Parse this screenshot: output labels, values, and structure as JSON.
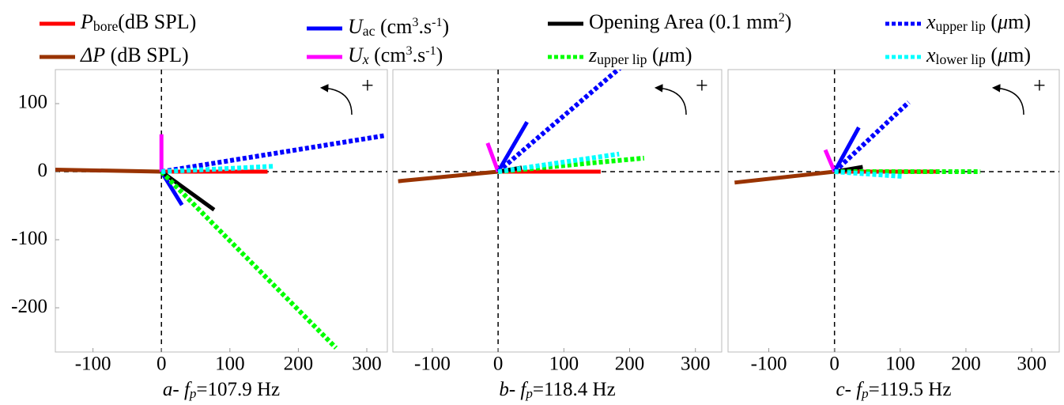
{
  "legend": [
    {
      "color": "#ff0000",
      "dash": false,
      "name": [
        {
          "text": "P",
          "style": "italic"
        },
        {
          "text": "bore",
          "style": "sub"
        },
        {
          "text": "(dB SPL)",
          "style": "normal"
        }
      ]
    },
    {
      "color": "#993300",
      "dash": false,
      "name": [
        {
          "text": "ΔP",
          "style": "italic"
        },
        {
          "text": " (dB SPL)",
          "style": "normal"
        }
      ]
    },
    {
      "color": "#0000ff",
      "dash": false,
      "name": [
        {
          "text": "U",
          "style": "italic"
        },
        {
          "text": "ac",
          "style": "sub"
        },
        {
          "text": " (cm",
          "style": "normal"
        },
        {
          "text": "3",
          "style": "sup"
        },
        {
          "text": ".s",
          "style": "normal"
        },
        {
          "text": "-1",
          "style": "sup"
        },
        {
          "text": ")",
          "style": "normal"
        }
      ]
    },
    {
      "color": "#ff00ff",
      "dash": false,
      "name": [
        {
          "text": "U",
          "style": "italic"
        },
        {
          "text": "x",
          "style": "italic sub"
        },
        {
          "text": " (cm",
          "style": "normal"
        },
        {
          "text": "3",
          "style": "sup"
        },
        {
          "text": ".s",
          "style": "normal"
        },
        {
          "text": "-1",
          "style": "sup"
        },
        {
          "text": ")",
          "style": "normal"
        }
      ]
    },
    {
      "color": "#000000",
      "dash": false,
      "name": [
        {
          "text": "Opening Area (0.1 mm",
          "style": "normal"
        },
        {
          "text": "2",
          "style": "sup"
        },
        {
          "text": ")",
          "style": "normal"
        }
      ]
    },
    {
      "color": "#00ff00",
      "dash": true,
      "name": [
        {
          "text": "z",
          "style": "italic"
        },
        {
          "text": "upper lip",
          "style": "sub"
        },
        {
          "text": " (",
          "style": "normal"
        },
        {
          "text": "μ",
          "style": "italic"
        },
        {
          "text": "m)",
          "style": "normal"
        }
      ]
    },
    {
      "color": "#0000ff",
      "dash": true,
      "name": [
        {
          "text": "x",
          "style": "italic"
        },
        {
          "text": "upper lip",
          "style": "sub"
        },
        {
          "text": " (",
          "style": "normal"
        },
        {
          "text": "μ",
          "style": "italic"
        },
        {
          "text": "m)",
          "style": "normal"
        }
      ]
    },
    {
      "color": "#00ffff",
      "dash": true,
      "name": [
        {
          "text": "x",
          "style": "italic"
        },
        {
          "text": "lower lip",
          "style": "sub"
        },
        {
          "text": " (",
          "style": "normal"
        },
        {
          "text": "μ",
          "style": "italic"
        },
        {
          "text": "m)",
          "style": "normal"
        }
      ]
    }
  ],
  "chart_data": [
    {
      "type": "phasor",
      "rotation_label": "+",
      "caption": [
        {
          "text": "a-",
          "style": "italic"
        },
        {
          "text": " ",
          "style": "normal"
        },
        {
          "text": "f",
          "style": "italic"
        },
        {
          "text": "p",
          "style": "italic sub"
        },
        {
          "text": "=107.9 Hz",
          "style": "normal"
        }
      ],
      "xlim": [
        -155,
        330
      ],
      "ylim": [
        -265,
        150
      ],
      "xticks": [
        -100,
        0,
        100,
        200,
        300
      ],
      "yticks": [
        -200,
        -100,
        0,
        100
      ],
      "series": [
        {
          "color": "#ff0000",
          "dash": false,
          "x": [
            0,
            155
          ],
          "values": [
            0,
            0
          ]
        },
        {
          "color": "#993300",
          "dash": false,
          "x": [
            0,
            -155
          ],
          "values": [
            0,
            3
          ]
        },
        {
          "color": "#0000ff",
          "dash": false,
          "x": [
            0,
            30
          ],
          "values": [
            0,
            -49
          ]
        },
        {
          "color": "#ff00ff",
          "dash": false,
          "x": [
            0,
            0
          ],
          "values": [
            0,
            55
          ]
        },
        {
          "color": "#000000",
          "dash": false,
          "x": [
            0,
            77
          ],
          "values": [
            0,
            -56
          ]
        },
        {
          "color": "#00ff00",
          "dash": true,
          "x": [
            0,
            255
          ],
          "values": [
            0,
            -259
          ]
        },
        {
          "color": "#0000ff",
          "dash": true,
          "x": [
            0,
            326
          ],
          "values": [
            0,
            53
          ]
        },
        {
          "color": "#00ffff",
          "dash": true,
          "x": [
            0,
            166
          ],
          "values": [
            0,
            8
          ]
        }
      ]
    },
    {
      "type": "phasor",
      "rotation_label": "+",
      "caption": [
        {
          "text": "b-",
          "style": "italic"
        },
        {
          "text": " ",
          "style": "normal"
        },
        {
          "text": "f",
          "style": "italic"
        },
        {
          "text": "p",
          "style": "italic sub"
        },
        {
          "text": "=118.4 Hz",
          "style": "normal"
        }
      ],
      "xlim": [
        -160,
        340
      ],
      "ylim": [
        -265,
        150
      ],
      "xticks": [
        -100,
        0,
        100,
        200,
        300
      ],
      "series": [
        {
          "color": "#ff0000",
          "dash": false,
          "x": [
            0,
            156
          ],
          "values": [
            0,
            0
          ]
        },
        {
          "color": "#993300",
          "dash": false,
          "x": [
            0,
            -152
          ],
          "values": [
            0,
            -14
          ]
        },
        {
          "color": "#0000ff",
          "dash": false,
          "x": [
            0,
            44
          ],
          "values": [
            0,
            73
          ]
        },
        {
          "color": "#ff00ff",
          "dash": false,
          "x": [
            0,
            -16
          ],
          "values": [
            0,
            42
          ]
        },
        {
          "color": "#000000",
          "dash": false,
          "x": [
            0,
            36
          ],
          "values": [
            0,
            6
          ]
        },
        {
          "color": "#00ff00",
          "dash": true,
          "x": [
            0,
            222
          ],
          "values": [
            0,
            20
          ]
        },
        {
          "color": "#0000ff",
          "dash": true,
          "x": [
            0,
            186
          ],
          "values": [
            0,
            153
          ]
        },
        {
          "color": "#00ffff",
          "dash": true,
          "x": [
            0,
            184
          ],
          "values": [
            0,
            26
          ]
        }
      ]
    },
    {
      "type": "phasor",
      "rotation_label": "+",
      "caption": [
        {
          "text": "c-",
          "style": "italic"
        },
        {
          "text": " ",
          "style": "normal"
        },
        {
          "text": "f",
          "style": "italic"
        },
        {
          "text": "p",
          "style": "italic sub"
        },
        {
          "text": "=119.5 Hz",
          "style": "normal"
        }
      ],
      "xlim": [
        -162,
        342
      ],
      "ylim": [
        -265,
        150
      ],
      "xticks": [
        -100,
        0,
        100,
        200,
        300
      ],
      "series": [
        {
          "color": "#ff0000",
          "dash": false,
          "x": [
            0,
            155
          ],
          "values": [
            0,
            0
          ]
        },
        {
          "color": "#993300",
          "dash": false,
          "x": [
            0,
            -152
          ],
          "values": [
            0,
            -16
          ]
        },
        {
          "color": "#0000ff",
          "dash": false,
          "x": [
            0,
            37
          ],
          "values": [
            0,
            65
          ]
        },
        {
          "color": "#ff00ff",
          "dash": false,
          "x": [
            0,
            -14
          ],
          "values": [
            0,
            32
          ]
        },
        {
          "color": "#000000",
          "dash": false,
          "x": [
            0,
            43
          ],
          "values": [
            0,
            7
          ]
        },
        {
          "color": "#00ff00",
          "dash": true,
          "x": [
            0,
            222
          ],
          "values": [
            0,
            0
          ]
        },
        {
          "color": "#0000ff",
          "dash": true,
          "x": [
            0,
            113
          ],
          "values": [
            0,
            102
          ]
        },
        {
          "color": "#00ffff",
          "dash": true,
          "x": [
            0,
            104
          ],
          "values": [
            0,
            -7
          ]
        }
      ]
    }
  ]
}
